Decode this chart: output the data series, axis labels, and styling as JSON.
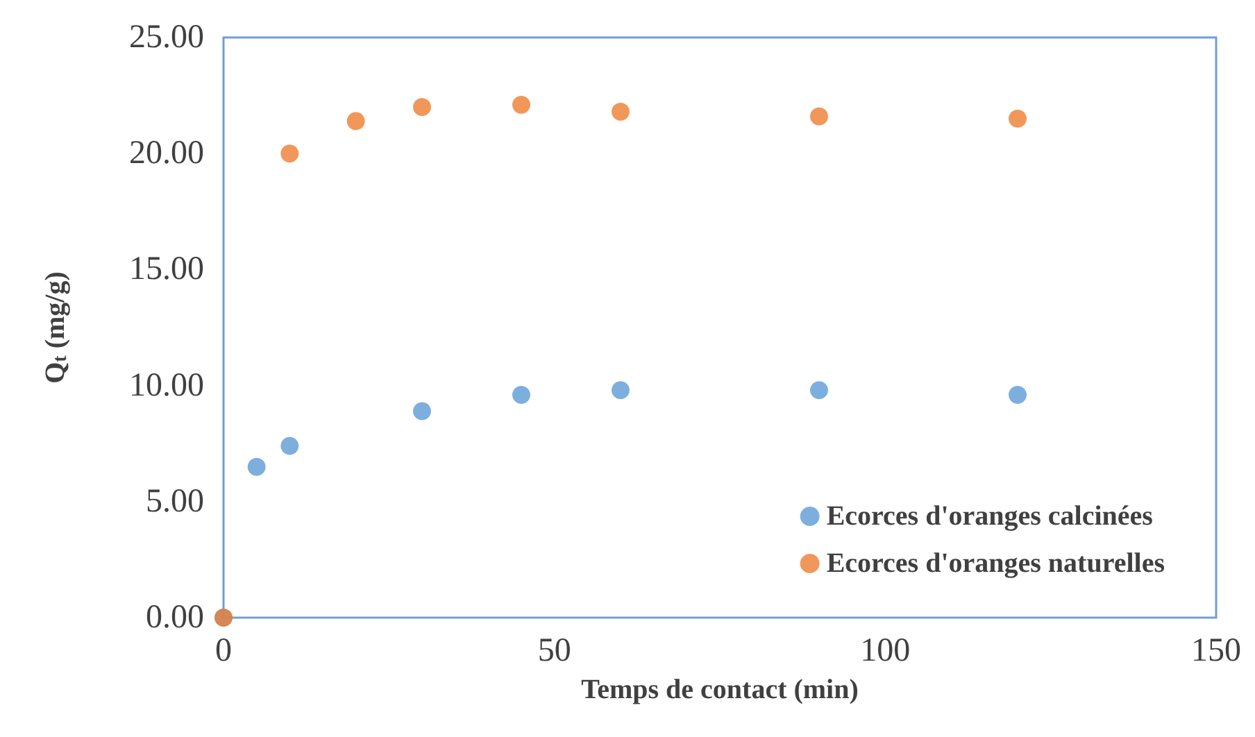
{
  "chart_data": {
    "type": "scatter",
    "xlabel": "Temps de contact (min)",
    "ylabel": "Q$_{t}$ (mg/g)",
    "xlim": [
      0,
      150
    ],
    "xticks": [
      0,
      50,
      100,
      150
    ],
    "ylim": [
      0,
      25
    ],
    "yticks": [
      {
        "value": 0,
        "label": "0.00"
      },
      {
        "value": 5,
        "label": "5.00"
      },
      {
        "value": 10,
        "label": "10.00"
      },
      {
        "value": 15,
        "label": "15.00"
      },
      {
        "value": 20,
        "label": "20.00"
      },
      {
        "value": 25,
        "label": "25.00"
      }
    ],
    "grid": false,
    "legend": "bottom right",
    "marker": "circle",
    "series": [
      {
        "name": "Ecorces d'oranges calcinées",
        "color": "#5b9bd5",
        "x": [
          0,
          5,
          10,
          30,
          45,
          60,
          90,
          120
        ],
        "values": [
          0,
          6.5,
          7.4,
          8.9,
          9.6,
          9.8,
          9.8,
          9.6
        ]
      },
      {
        "name": "Ecorces d'oranges naturelles",
        "color": "#ed7d31",
        "x": [
          0,
          10,
          20,
          30,
          45,
          60,
          90,
          120
        ],
        "values": [
          0,
          20.0,
          21.4,
          22.0,
          22.1,
          21.8,
          21.6,
          21.5
        ]
      }
    ]
  }
}
